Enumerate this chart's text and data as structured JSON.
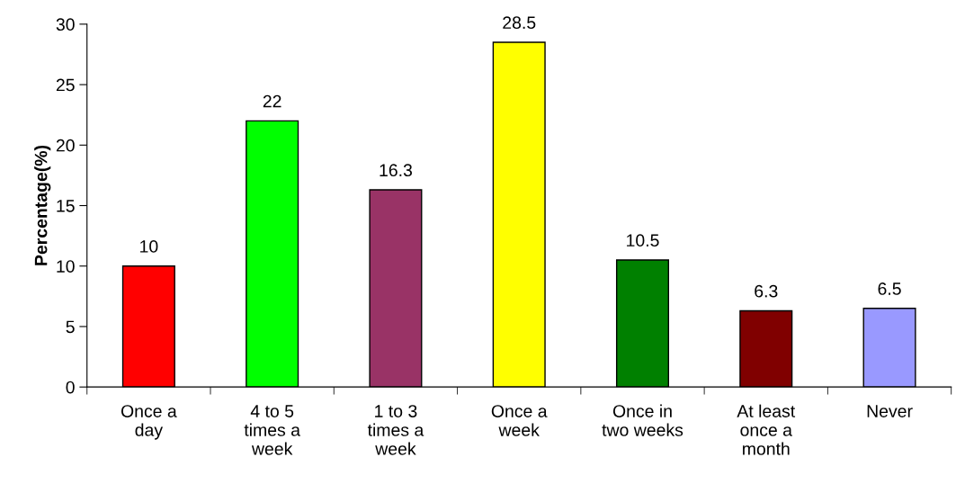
{
  "chart_data": {
    "type": "bar",
    "ylabel": "Percentage(%)",
    "categories": [
      "Once a\nday",
      "4 to 5\ntimes a\nweek",
      "1 to 3\ntimes a\nweek",
      "Once a\nweek",
      "Once in\ntwo weeks",
      "At least\nonce a\nmonth",
      "Never"
    ],
    "values": [
      10,
      22,
      16.3,
      28.5,
      10.5,
      6.3,
      6.5
    ],
    "colors": [
      "#ff0000",
      "#00ff00",
      "#993366",
      "#ffff00",
      "#008000",
      "#800000",
      "#9999ff"
    ],
    "ylim": [
      0,
      30
    ],
    "yticks": [
      0,
      5,
      10,
      15,
      20,
      25,
      30
    ],
    "data_labels": true,
    "grid": false,
    "legend": false
  }
}
